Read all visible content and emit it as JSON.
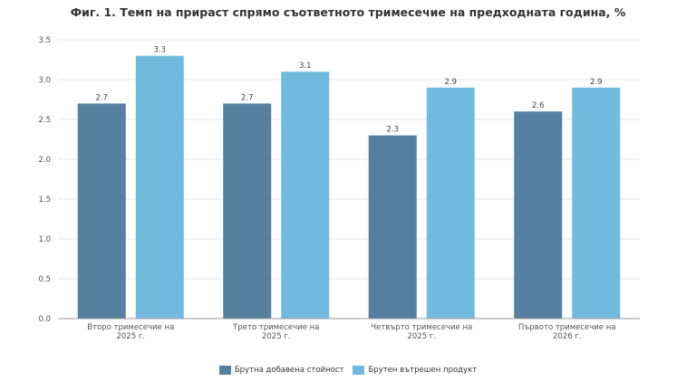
{
  "chart_data": {
    "type": "bar",
    "title": "Фиг. 1. Темп на прираст спрямо съответното тримесечие на предходната година, %",
    "categories": [
      [
        "Второ тримесечие на",
        "2025 г."
      ],
      [
        "Трето тримесечие на",
        "2025 г."
      ],
      [
        "Четвърто тримесечие на",
        "2025 г."
      ],
      [
        "Първото тримесечие на",
        "2026 г."
      ]
    ],
    "series": [
      {
        "name": "Брутна добавена стойност",
        "color": "#5580a0",
        "values": [
          2.7,
          2.7,
          2.3,
          2.6
        ]
      },
      {
        "name": "Брутен вътрешен продукт",
        "color": "#72bbe0",
        "values": [
          3.3,
          3.1,
          2.9,
          2.9
        ]
      }
    ],
    "value_labels": [
      [
        "2.7",
        "2.7",
        "2.3",
        "2.6"
      ],
      [
        "3.3",
        "3.1",
        "2.9",
        "2.9"
      ]
    ],
    "ylim": [
      0,
      3.5
    ],
    "yticks": [
      "0.0",
      "0.5",
      "1.0",
      "1.5",
      "2.0",
      "2.5",
      "3.0",
      "3.5"
    ],
    "grid": true,
    "legend_position": "bottom-center"
  }
}
